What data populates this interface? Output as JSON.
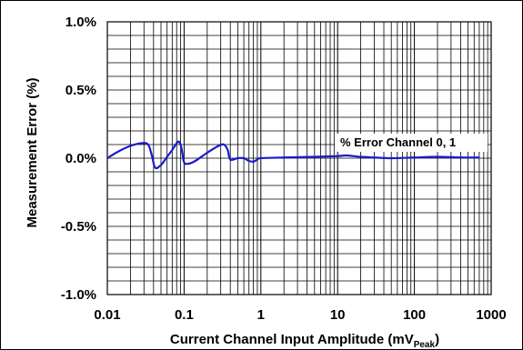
{
  "chart_data": {
    "type": "line",
    "x_scale": "log",
    "xlim": [
      0.01,
      1000
    ],
    "ylim": [
      -1.0,
      1.0
    ],
    "grid": true,
    "legend_placement": "right-center",
    "xlabel": "Current Channel Input Amplitude (mV",
    "xlabel_sub": "Peak",
    "xlabel_close": ")",
    "ylabel": "Measurement Error (%)",
    "x_ticks": [
      {
        "value": 0.01,
        "label": "0.01"
      },
      {
        "value": 0.1,
        "label": "0.1"
      },
      {
        "value": 1,
        "label": "1"
      },
      {
        "value": 10,
        "label": "10"
      },
      {
        "value": 100,
        "label": "100"
      },
      {
        "value": 1000,
        "label": "1000"
      }
    ],
    "y_ticks": [
      {
        "value": 1.0,
        "label": "1.0%"
      },
      {
        "value": 0.5,
        "label": "0.5%"
      },
      {
        "value": 0.0,
        "label": "0.0%"
      },
      {
        "value": -0.5,
        "label": "-0.5%"
      },
      {
        "value": -1.0,
        "label": "-1.0%"
      }
    ],
    "series": [
      {
        "name": "% Error Channel 0, 1",
        "color": "#1a1acc",
        "x": [
          0.01,
          0.014,
          0.02,
          0.028,
          0.034,
          0.038,
          0.042,
          0.05,
          0.06,
          0.07,
          0.08,
          0.086,
          0.092,
          0.1,
          0.115,
          0.14,
          0.2,
          0.28,
          0.33,
          0.37,
          0.4,
          0.5,
          0.6,
          0.7,
          0.8,
          0.9,
          1.0,
          2,
          5,
          10,
          13,
          20,
          30,
          50,
          100,
          200,
          400,
          700
        ],
        "y": [
          0.0,
          0.05,
          0.09,
          0.11,
          0.1,
          0.02,
          -0.07,
          -0.05,
          0.01,
          0.06,
          0.11,
          0.12,
          0.08,
          -0.03,
          -0.04,
          -0.02,
          0.04,
          0.09,
          0.1,
          0.06,
          -0.01,
          0.0,
          0.0,
          -0.02,
          -0.025,
          -0.01,
          0.0,
          0.005,
          0.01,
          0.015,
          0.02,
          0.01,
          0.005,
          0.0,
          0.005,
          0.01,
          0.005,
          0.005
        ]
      }
    ]
  },
  "colors": {
    "series": "#1a1acc",
    "grid": "#000000",
    "legend_bg": "#ffffff"
  }
}
